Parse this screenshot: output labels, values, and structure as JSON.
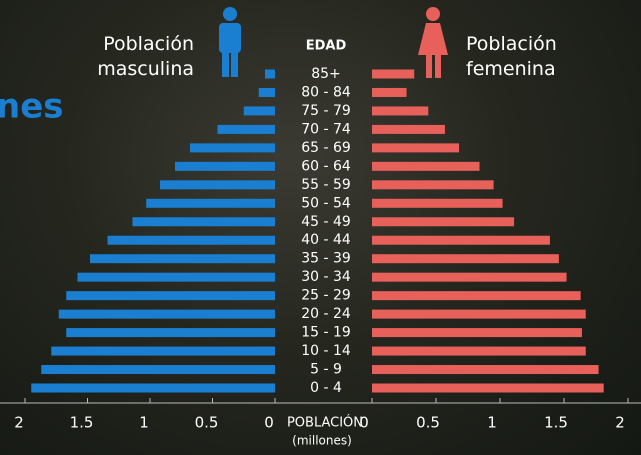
{
  "chart_data": {
    "type": "population_pyramid",
    "title": "nes",
    "category_axis_title": "EDAD",
    "x_axis_title": "POBLACIÓN",
    "x_axis_subtitle": "(millones)",
    "categories": [
      "85+",
      "80 - 84",
      "75 - 79",
      "70 - 74",
      "65 - 69",
      "60 - 64",
      "55 - 59",
      "50 - 54",
      "45 - 49",
      "40 - 44",
      "35 - 39",
      "30 - 34",
      "25 - 29",
      "20 - 24",
      "15 - 19",
      "10 - 14",
      "5 - 9",
      "0 - 4"
    ],
    "series": [
      {
        "name": "Población masculina",
        "color": "#1a7fd0",
        "values": [
          0.08,
          0.13,
          0.25,
          0.46,
          0.68,
          0.8,
          0.92,
          1.03,
          1.14,
          1.34,
          1.48,
          1.58,
          1.67,
          1.73,
          1.67,
          1.79,
          1.87,
          1.95
        ]
      },
      {
        "name": "Población femenina",
        "color": "#e8605a",
        "values": [
          0.33,
          0.27,
          0.44,
          0.57,
          0.68,
          0.84,
          0.95,
          1.02,
          1.11,
          1.39,
          1.46,
          1.52,
          1.63,
          1.67,
          1.64,
          1.67,
          1.77,
          1.81
        ]
      }
    ],
    "xlim": [
      0,
      2
    ],
    "xticks": [
      0,
      0.5,
      1,
      1.5,
      2
    ],
    "x2lim": [
      0,
      2
    ],
    "x2ticks": [
      0,
      0.5,
      1,
      1.5,
      2
    ]
  }
}
